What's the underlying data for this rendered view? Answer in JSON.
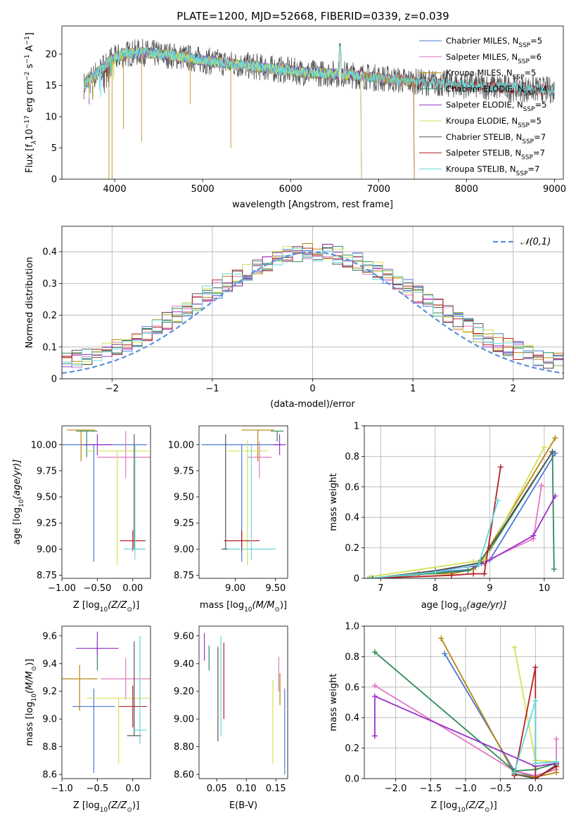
{
  "page_title": "PLATE=1200, MJD=52668, FIBERID=0339, z=0.039",
  "colors": {
    "Chabrier MILES": "#4c78d8",
    "Salpeter MILES": "#e377c2",
    "Kroupa MILES": "#b8860b",
    "Chabrier ELODIE": "#2e8b57",
    "Salpeter ELODIE": "#9932cc",
    "Kroupa ELODIE": "#d4e157",
    "Chabrier STELIB": "#555555",
    "Salpeter STELIB": "#b22222",
    "Kroupa STELIB": "#66d9d9"
  },
  "chart_data": [
    {
      "id": "spectrum",
      "type": "line",
      "title": "PLATE=1200, MJD=52668, FIBERID=0339, z=0.039",
      "xlabel": "wavelength [Angstrom, rest frame]",
      "ylabel_main": "Flux [f",
      "ylabel_sub": "λ",
      "ylabel_rest": "10",
      "ylabel_sup": "−17",
      "ylabel_tail": " erg cm",
      "ylabel_sup2": "−2",
      "ylabel_tail2": " s",
      "ylabel_sup3": "−1",
      "ylabel_tail3": " A",
      "ylabel_sup4": "−1",
      "ylabel_end": "]",
      "xlim": [
        3400,
        9100
      ],
      "ylim": [
        0,
        24.5
      ],
      "xticks": [
        4000,
        5000,
        6000,
        7000,
        8000,
        9000
      ],
      "yticks": [
        0,
        5,
        10,
        15,
        20
      ],
      "legend_position": "upper-right",
      "legend": [
        {
          "name": "Chabrier MILES",
          "nssp": "5"
        },
        {
          "name": "Salpeter MILES",
          "nssp": "6"
        },
        {
          "name": "Kroupa MILES",
          "nssp": "5"
        },
        {
          "name": "Chabrier ELODIE",
          "nssp": "4"
        },
        {
          "name": "Salpeter ELODIE",
          "nssp": "5"
        },
        {
          "name": "Kroupa ELODIE",
          "nssp": "5"
        },
        {
          "name": "Chabrier STELIB",
          "nssp": "7"
        },
        {
          "name": "Salpeter STELIB",
          "nssp": "7"
        },
        {
          "name": "Kroupa STELIB",
          "nssp": "7"
        }
      ],
      "legend_prefix": ", N",
      "legend_sub": "SSP",
      "legend_eq": "=",
      "continuum": [
        [
          3650,
          15
        ],
        [
          3800,
          17
        ],
        [
          3950,
          19
        ],
        [
          4100,
          20
        ],
        [
          4300,
          20.3
        ],
        [
          4500,
          20
        ],
        [
          4800,
          19.5
        ],
        [
          5000,
          19
        ],
        [
          5300,
          18.5
        ],
        [
          5600,
          18
        ],
        [
          5900,
          17.5
        ],
        [
          6200,
          17
        ],
        [
          6600,
          16.8
        ],
        [
          7000,
          16.2
        ],
        [
          7400,
          15.6
        ],
        [
          8000,
          15
        ],
        [
          8500,
          14.6
        ],
        [
          9000,
          14.2
        ]
      ],
      "model_ends": {
        "Chabrier MILES": 7400,
        "Salpeter MILES": 7400,
        "Kroupa MILES": 7400,
        "Chabrier ELODIE": 6800,
        "Salpeter ELODIE": 6800,
        "Kroupa ELODIE": 6800,
        "Chabrier STELIB": 9000,
        "Salpeter STELIB": 9000,
        "Kroupa STELIB": 9000
      }
    },
    {
      "id": "residuals",
      "type": "histogram",
      "xlabel": "(data-model)/error",
      "ylabel": "Normed distribution",
      "xlim": [
        -2.5,
        2.5
      ],
      "ylim": [
        0,
        0.48
      ],
      "xticks": [
        -2,
        -1,
        0,
        1,
        2
      ],
      "yticks": [
        0.0,
        0.1,
        0.2,
        0.3,
        0.4
      ],
      "grid": true,
      "legend": "𝒩(0,1)",
      "legend_position": "upper-right",
      "bin_width": 0.1
    },
    {
      "id": "age_vs_Z",
      "type": "errorbar",
      "xlabel": "Z [log",
      "xlabel_sub": "10",
      "xlabel_rest": "(Z/Z",
      "xlabel_sub2": "⊙",
      "xlabel_end": ")]",
      "ylabel": "age  [log",
      "ylabel_sub": "10",
      "ylabel_rest": "(age/yr)]",
      "xlim": [
        -1.0,
        0.25
      ],
      "ylim": [
        8.72,
        10.18
      ],
      "xticks": [
        -1.0,
        -0.5,
        0.0
      ],
      "yticks": [
        8.75,
        9.0,
        9.25,
        9.5,
        9.75,
        10.0
      ],
      "points": [
        {
          "series": "Chabrier MILES",
          "x": -0.55,
          "xerr": 0.75,
          "y": 10.0,
          "yerr": [
            1.12,
            0
          ]
        },
        {
          "series": "Salpeter MILES",
          "x": -0.1,
          "xerr": 0.4,
          "y": 9.88,
          "yerr": [
            0.2,
            0.25
          ]
        },
        {
          "series": "Kroupa MILES",
          "x": -0.73,
          "xerr": 0.2,
          "y": 10.14,
          "yerr": [
            0.3,
            0
          ]
        },
        {
          "series": "Chabrier ELODIE",
          "x": -0.65,
          "xerr": 0.15,
          "y": 10.13,
          "yerr": [
            0.25,
            0
          ]
        },
        {
          "series": "Salpeter ELODIE",
          "x": -0.5,
          "xerr": 0.2,
          "y": 10.0,
          "yerr": [
            0.1,
            0.1
          ]
        },
        {
          "series": "Kroupa ELODIE",
          "x": -0.22,
          "xerr": 0.45,
          "y": 9.94,
          "yerr": [
            1.1,
            0
          ]
        },
        {
          "series": "Chabrier STELIB",
          "x": 0.02,
          "xerr": 0.05,
          "y": 9.0,
          "yerr": [
            0.0,
            1.1
          ]
        },
        {
          "series": "Salpeter STELIB",
          "x": 0.0,
          "xerr": 0.18,
          "y": 9.08,
          "yerr": [
            0.1,
            0.1
          ]
        },
        {
          "series": "Kroupa STELIB",
          "x": 0.03,
          "xerr": 0.15,
          "y": 9.0,
          "yerr": [
            0.1,
            1.0
          ]
        }
      ]
    },
    {
      "id": "age_vs_mass",
      "type": "errorbar",
      "xlabel": "mass [log",
      "xlabel_sub": "10",
      "xlabel_rest": "(M/M",
      "xlabel_sub2": "⊙",
      "xlabel_end": ")]",
      "xlim": [
        8.55,
        9.65
      ],
      "ylim": [
        8.72,
        10.18
      ],
      "xticks": [
        9.0,
        9.5
      ],
      "yticks": [
        8.75,
        9.0,
        9.25,
        9.5,
        9.75,
        10.0
      ],
      "points": [
        {
          "series": "Chabrier MILES",
          "x": 9.08,
          "xerr": 0.5,
          "y": 10.0,
          "yerr": [
            1.12,
            0
          ]
        },
        {
          "series": "Salpeter MILES",
          "x": 9.3,
          "xerr": 0.15,
          "y": 9.88,
          "yerr": [
            0.2,
            0.15
          ]
        },
        {
          "series": "Kroupa MILES",
          "x": 9.28,
          "xerr": 0.2,
          "y": 10.14,
          "yerr": [
            0.3,
            0
          ]
        },
        {
          "series": "Chabrier ELODIE",
          "x": 9.52,
          "xerr": 0.08,
          "y": 10.13,
          "yerr": [
            0.1,
            0
          ]
        },
        {
          "series": "Salpeter ELODIE",
          "x": 9.55,
          "xerr": 0.08,
          "y": 10.0,
          "yerr": [
            0.1,
            0.1
          ]
        },
        {
          "series": "Kroupa ELODIE",
          "x": 9.15,
          "xerr": 0.25,
          "y": 9.94,
          "yerr": [
            1.1,
            0.1
          ]
        },
        {
          "series": "Chabrier STELIB",
          "x": 8.88,
          "xerr": 0.05,
          "y": 9.0,
          "yerr": [
            0.0,
            1.1
          ]
        },
        {
          "series": "Salpeter STELIB",
          "x": 9.08,
          "xerr": 0.22,
          "y": 9.08,
          "yerr": [
            0.1,
            0.1
          ]
        },
        {
          "series": "Kroupa STELIB",
          "x": 9.2,
          "xerr": 0.3,
          "y": 9.0,
          "yerr": [
            0.1,
            1.0
          ]
        }
      ]
    },
    {
      "id": "weight_vs_age",
      "type": "line",
      "xlabel": "age  [log",
      "xlabel_sub": "10",
      "xlabel_rest": "(age/yr)]",
      "ylabel": "mass weight",
      "xlim": [
        6.7,
        10.35
      ],
      "ylim": [
        0,
        1.0
      ],
      "xticks": [
        7,
        8,
        9,
        10
      ],
      "yticks": [
        0.0,
        0.2,
        0.4,
        0.6,
        0.8,
        1.0
      ],
      "grid": true,
      "series": [
        {
          "name": "Chabrier MILES",
          "x": [
            6.8,
            7.7,
            8.7,
            8.85,
            9.0,
            10.2
          ],
          "y": [
            0.0,
            0.03,
            0.06,
            0.1,
            0.12,
            0.82
          ]
        },
        {
          "name": "Salpeter MILES",
          "x": [
            6.85,
            8.7,
            8.85,
            9.8,
            9.95
          ],
          "y": [
            0.0,
            0.08,
            0.1,
            0.26,
            0.61
          ]
        },
        {
          "name": "Kroupa MILES",
          "x": [
            6.8,
            7.7,
            8.3,
            8.7,
            8.85,
            10.2
          ],
          "y": [
            0.0,
            0.03,
            0.03,
            0.06,
            0.12,
            0.92
          ]
        },
        {
          "name": "Chabrier ELODIE",
          "x": [
            6.8,
            8.6,
            8.85,
            10.15,
            10.18
          ],
          "y": [
            0.0,
            0.05,
            0.1,
            0.83,
            0.06
          ]
        },
        {
          "name": "Salpeter ELODIE",
          "x": [
            6.85,
            8.7,
            8.9,
            9.8,
            10.2
          ],
          "y": [
            0.0,
            0.08,
            0.1,
            0.28,
            0.54
          ]
        },
        {
          "name": "Kroupa ELODIE",
          "x": [
            6.8,
            8.7,
            8.9,
            10.0
          ],
          "y": [
            0.01,
            0.11,
            0.12,
            0.86
          ]
        },
        {
          "name": "Chabrier STELIB",
          "x": [
            6.85,
            8.0,
            8.8,
            9.0,
            10.15
          ],
          "y": [
            0.0,
            0.05,
            0.1,
            0.2,
            0.83
          ]
        },
        {
          "name": "Salpeter STELIB",
          "x": [
            6.8,
            8.3,
            8.7,
            8.9,
            9.2
          ],
          "y": [
            0.0,
            0.02,
            0.03,
            0.03,
            0.73
          ]
        },
        {
          "name": "Kroupa STELIB",
          "x": [
            6.8,
            8.0,
            8.8,
            9.15
          ],
          "y": [
            0.0,
            0.04,
            0.09,
            0.51
          ]
        }
      ]
    },
    {
      "id": "mass_vs_Z",
      "type": "errorbar",
      "xlabel": "Z [log",
      "xlabel_sub": "10",
      "xlabel_rest": "(Z/Z",
      "xlabel_sub2": "⊙",
      "xlabel_end": ")]",
      "ylabel": "mass [log",
      "ylabel_sub": "10",
      "ylabel_rest": "(M/M",
      "ylabel_sub2": "⊙",
      "ylabel_end": ")]",
      "xlim": [
        -1.0,
        0.25
      ],
      "ylim": [
        8.57,
        9.67
      ],
      "xticks": [
        -1.0,
        -0.5,
        0.0
      ],
      "yticks": [
        8.6,
        8.8,
        9.0,
        9.2,
        9.4,
        9.6
      ],
      "points": [
        {
          "series": "Chabrier MILES",
          "x": -0.55,
          "xerr": 0.3,
          "y": 9.09,
          "yerr": [
            0.48,
            0.13
          ]
        },
        {
          "series": "Salpeter MILES",
          "x": -0.1,
          "xerr": 0.35,
          "y": 9.29,
          "yerr": [
            0.15,
            0.15
          ]
        },
        {
          "series": "Kroupa MILES",
          "x": -0.75,
          "xerr": 0.25,
          "y": 9.29,
          "yerr": [
            0.23,
            0.1
          ]
        },
        {
          "series": "Chabrier ELODIE",
          "x": -0.5,
          "xerr": 0.05,
          "y": 9.51,
          "yerr": [
            0.16,
            0.05
          ]
        },
        {
          "series": "Salpeter ELODIE",
          "x": -0.5,
          "xerr": 0.3,
          "y": 9.51,
          "yerr": [
            0.05,
            0.12
          ]
        },
        {
          "series": "Kroupa ELODIE",
          "x": -0.2,
          "xerr": 0.45,
          "y": 9.15,
          "yerr": [
            0.47,
            0.0
          ]
        },
        {
          "series": "Chabrier STELIB",
          "x": 0.02,
          "xerr": 0.1,
          "y": 8.88,
          "yerr": [
            0.0,
            0.68
          ]
        },
        {
          "series": "Salpeter STELIB",
          "x": 0.0,
          "xerr": 0.2,
          "y": 9.09,
          "yerr": [
            0.15,
            0.15
          ]
        },
        {
          "series": "Kroupa STELIB",
          "x": 0.1,
          "xerr": 0.1,
          "y": 8.92,
          "yerr": [
            0.1,
            0.68
          ]
        }
      ]
    },
    {
      "id": "mass_vs_ebv",
      "type": "errorbar",
      "xlabel": "E(B-V)",
      "xlim": [
        0.02,
        0.17
      ],
      "ylim": [
        8.57,
        9.67
      ],
      "xticks": [
        0.05,
        0.1,
        0.15
      ],
      "yticks": [
        8.6,
        8.8,
        9.0,
        9.2,
        9.4,
        9.6
      ],
      "points": [
        {
          "series": "Chabrier MILES",
          "x": 0.165,
          "xerr": 0,
          "y": 9.0,
          "yerr": [
            0.4,
            0.22
          ]
        },
        {
          "series": "Salpeter MILES",
          "x": 0.155,
          "xerr": 0,
          "y": 9.3,
          "yerr": [
            0.1,
            0.15
          ]
        },
        {
          "series": "Kroupa MILES",
          "x": 0.157,
          "xerr": 0,
          "y": 9.2,
          "yerr": [
            0.1,
            0.13
          ]
        },
        {
          "series": "Chabrier ELODIE",
          "x": 0.037,
          "xerr": 0,
          "y": 9.48,
          "yerr": [
            0.13,
            0.05
          ]
        },
        {
          "series": "Salpeter ELODIE",
          "x": 0.029,
          "xerr": 0,
          "y": 9.52,
          "yerr": [
            0.1,
            0.1
          ]
        },
        {
          "series": "Kroupa ELODIE",
          "x": 0.145,
          "xerr": 0,
          "y": 9.0,
          "yerr": [
            0.32,
            0.28
          ]
        },
        {
          "series": "Chabrier STELIB",
          "x": 0.052,
          "xerr": 0,
          "y": 9.2,
          "yerr": [
            0.36,
            0.32
          ]
        },
        {
          "series": "Salpeter STELIB",
          "x": 0.062,
          "xerr": 0,
          "y": 9.3,
          "yerr": [
            0.3,
            0.25
          ]
        },
        {
          "series": "Kroupa STELIB",
          "x": 0.057,
          "xerr": 0,
          "y": 9.2,
          "yerr": [
            0.32,
            0.4
          ]
        }
      ]
    },
    {
      "id": "weight_vs_Z",
      "type": "line",
      "xlabel": "Z [log",
      "xlabel_sub": "10",
      "xlabel_rest": "(Z/Z",
      "xlabel_sub2": "⊙",
      "xlabel_end": ")]",
      "ylabel": "mass weight",
      "xlim": [
        -2.45,
        0.4
      ],
      "ylim": [
        0,
        1.0
      ],
      "xticks": [
        -2.0,
        -1.5,
        -1.0,
        -0.5,
        0.0
      ],
      "yticks": [
        0.0,
        0.2,
        0.4,
        0.6,
        0.8,
        1.0
      ],
      "grid": true,
      "series": [
        {
          "name": "Chabrier MILES",
          "x": [
            -1.3,
            -0.3,
            0.0,
            0.0,
            0.3
          ],
          "y": [
            0.82,
            0.05,
            0.01,
            0.1,
            0.11
          ]
        },
        {
          "name": "Salpeter MILES",
          "x": [
            -2.3,
            -0.3,
            0.0,
            0.3,
            0.3
          ],
          "y": [
            0.61,
            0.05,
            0.02,
            0.06,
            0.26
          ]
        },
        {
          "name": "Kroupa MILES",
          "x": [
            -1.35,
            -0.3,
            0.0,
            0.3,
            0.3
          ],
          "y": [
            0.92,
            0.03,
            0.01,
            0.04,
            0.1
          ]
        },
        {
          "name": "Chabrier ELODIE",
          "x": [
            -2.3,
            -0.3,
            0.0,
            0.3
          ],
          "y": [
            0.83,
            0.05,
            0.06,
            0.1
          ]
        },
        {
          "name": "Salpeter ELODIE",
          "x": [
            -2.3,
            -2.3,
            0.0,
            0.3
          ],
          "y": [
            0.28,
            0.54,
            0.08,
            0.1
          ]
        },
        {
          "name": "Kroupa ELODIE",
          "x": [
            -0.3,
            0.0,
            0.3
          ],
          "y": [
            0.86,
            0.12,
            0.11
          ]
        },
        {
          "name": "Chabrier STELIB",
          "x": [
            -0.3,
            0.0,
            0.3
          ],
          "y": [
            0.03,
            0.0,
            0.09
          ]
        },
        {
          "name": "Salpeter STELIB",
          "x": [
            -0.3,
            0.0,
            0.0,
            0.3
          ],
          "y": [
            0.02,
            0.73,
            0.0,
            0.08
          ]
        },
        {
          "name": "Kroupa STELIB",
          "x": [
            -0.3,
            0.0,
            0.0,
            0.3
          ],
          "y": [
            0.04,
            0.51,
            0.1,
            0.11
          ]
        }
      ]
    }
  ]
}
